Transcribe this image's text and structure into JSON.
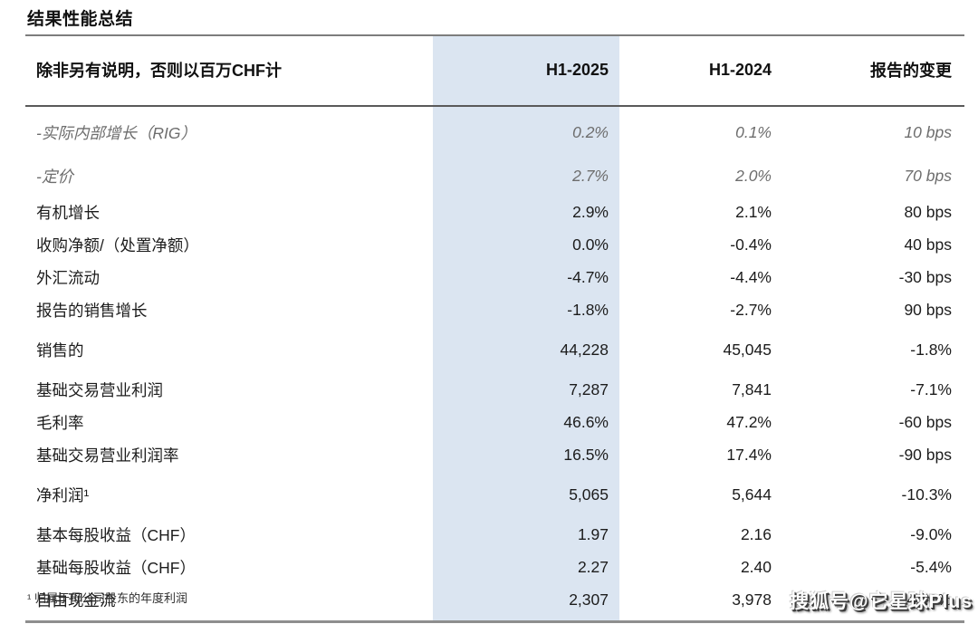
{
  "page": {
    "title": "结果性能总结"
  },
  "table": {
    "header": {
      "col1": "除非另有说明，否则以百万CHF计",
      "col2": "H1-2025",
      "col3": "H1-2024",
      "col4": "报告的变更"
    },
    "rows": [
      {
        "label": "-实际内部增长（RIG）",
        "h1_2025": "0.2%",
        "h1_2024": "0.1%",
        "change": "10 bps"
      },
      {
        "label": "-定价",
        "h1_2025": "2.7%",
        "h1_2024": "2.0%",
        "change": "70 bps"
      },
      {
        "label": "有机增长",
        "h1_2025": "2.9%",
        "h1_2024": "2.1%",
        "change": "80 bps"
      },
      {
        "label": "收购净额/（处置净额）",
        "h1_2025": "0.0%",
        "h1_2024": "-0.4%",
        "change": "40 bps"
      },
      {
        "label": "外汇流动",
        "h1_2025": "-4.7%",
        "h1_2024": "-4.4%",
        "change": "-30 bps"
      },
      {
        "label": "报告的销售增长",
        "h1_2025": "-1.8%",
        "h1_2024": "-2.7%",
        "change": "90 bps"
      },
      {
        "label": "销售的",
        "h1_2025": "44,228",
        "h1_2024": "45,045",
        "change": "-1.8%"
      },
      {
        "label": "基础交易营业利润",
        "h1_2025": "7,287",
        "h1_2024": "7,841",
        "change": "-7.1%"
      },
      {
        "label": "毛利率",
        "h1_2025": "46.6%",
        "h1_2024": "47.2%",
        "change": "-60 bps"
      },
      {
        "label": "基础交易营业利润率",
        "h1_2025": "16.5%",
        "h1_2024": "17.4%",
        "change": "-90 bps"
      },
      {
        "label": "净利润¹",
        "h1_2025": "5,065",
        "h1_2024": "5,644",
        "change": "-10.3%"
      },
      {
        "label": "基本每股收益（CHF）",
        "h1_2025": "1.97",
        "h1_2024": "2.16",
        "change": "-9.0%"
      },
      {
        "label": "基础每股收益（CHF）",
        "h1_2025": "2.27",
        "h1_2024": "2.40",
        "change": "-5.4%"
      },
      {
        "label": "自由现金流",
        "h1_2025": "2,307",
        "h1_2024": "3,978",
        "change": "-42.0%"
      }
    ]
  },
  "footnote": "¹ 归属于母公司股东的年度利润",
  "watermark": "搜狐号@它星球Plus",
  "colors": {
    "highlight_column_bg": "#dbe5f1",
    "top_border": "#7d7d7d",
    "header_border": "#5a5a5a",
    "bottom_border": "#8e8e8e",
    "muted_italic_text": "#6d6d6d",
    "text": "#1c1c1c"
  }
}
